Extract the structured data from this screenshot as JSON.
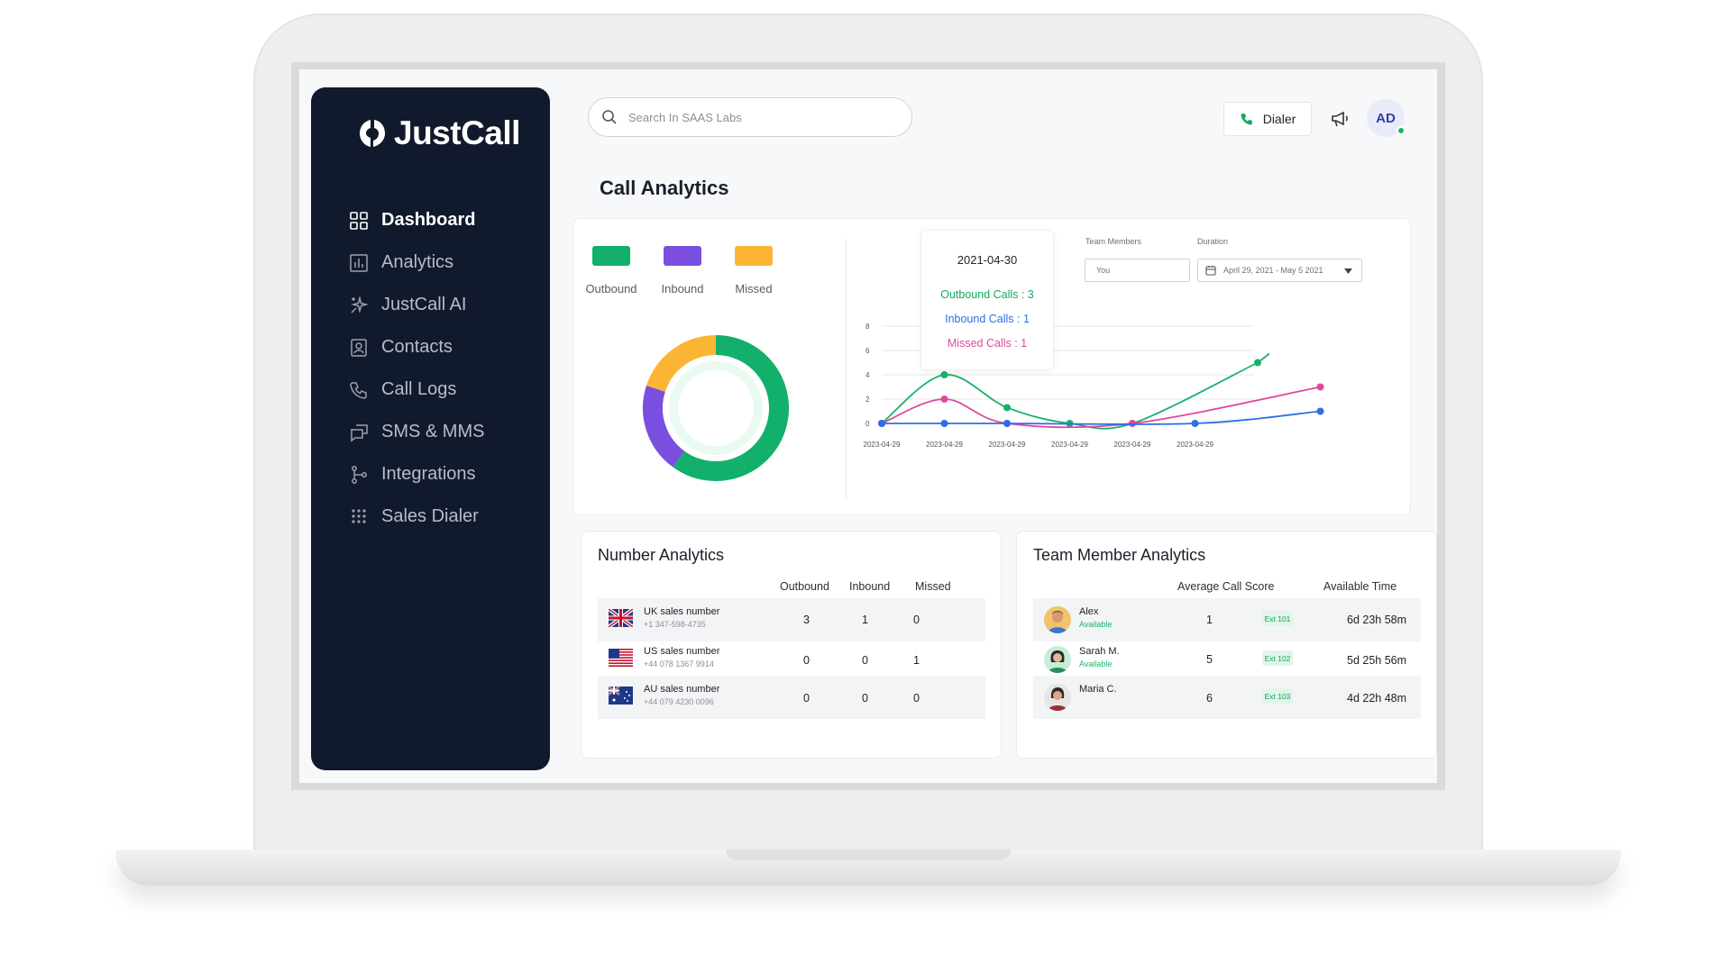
{
  "brand": {
    "name": "JustCall"
  },
  "sidebar": {
    "items": [
      {
        "label": "Dashboard",
        "active": true
      },
      {
        "label": "Analytics"
      },
      {
        "label": "JustCall AI"
      },
      {
        "label": "Contacts"
      },
      {
        "label": "Call Logs"
      },
      {
        "label": "SMS & MMS"
      },
      {
        "label": "Integrations"
      },
      {
        "label": "Sales Dialer"
      }
    ]
  },
  "topbar": {
    "search_placeholder": "Search In SAAS Labs",
    "dialer_label": "Dialer",
    "avatar_initials": "AD",
    "status_color": "#1bb46a"
  },
  "page": {
    "title": "Call Analytics"
  },
  "call_analytics": {
    "legend": [
      {
        "label": "Outbound",
        "color": "#12b06b"
      },
      {
        "label": "Inbound",
        "color": "#7a4fe0"
      },
      {
        "label": "Missed",
        "color": "#fbb534"
      }
    ],
    "tooltip": {
      "date": "2021-04-30",
      "outbound": "Outbound Calls : 3",
      "inbound": "Inbound Calls : 1",
      "missed": "Missed Calls : 1"
    },
    "filters": {
      "team_members_label": "Team Members",
      "team_members_value": "You",
      "duration_label": "Duration",
      "duration_value": "April 29, 2021 - May 5 2021"
    }
  },
  "chart_data": [
    {
      "type": "pie",
      "categories": [
        "Outbound",
        "Inbound",
        "Missed"
      ],
      "values": [
        3,
        1,
        1
      ],
      "colors": [
        "#12b06b",
        "#7a4fe0",
        "#fbb534"
      ]
    },
    {
      "type": "line",
      "x": [
        "2023-04-29",
        "2023-04-29",
        "2023-04-29",
        "2023-04-29",
        "2023-04-29",
        "2023-04-29",
        "",
        ""
      ],
      "series": [
        {
          "name": "Outbound",
          "color": "#17b26a",
          "values": [
            0,
            4,
            1.3,
            0,
            0,
            null,
            5,
            null
          ]
        },
        {
          "name": "Missed",
          "color": "#e0489c",
          "values": [
            0,
            2,
            0,
            null,
            0,
            null,
            null,
            3
          ]
        },
        {
          "name": "Inbound",
          "color": "#2e6fe6",
          "values": [
            0,
            0,
            0,
            null,
            null,
            0,
            null,
            1
          ]
        }
      ],
      "ylim": [
        0,
        8
      ],
      "yticks": [
        0,
        2,
        4,
        6,
        8
      ],
      "grid": true
    }
  ],
  "number_analytics": {
    "title": "Number Analytics",
    "columns": [
      "Outbound",
      "Inbound",
      "Missed"
    ],
    "rows": [
      {
        "name": "UK sales number",
        "number": "+1 347-598-4735",
        "flag": "uk-flag",
        "outbound": "3",
        "inbound": "1",
        "missed": "0"
      },
      {
        "name": "US sales number",
        "number": "+44 078 1367 9914",
        "flag": "us-flag",
        "outbound": "0",
        "inbound": "0",
        "missed": "1"
      },
      {
        "name": "AU sales number",
        "number": "+44 079 4230 0096",
        "flag": "au-flag",
        "outbound": "0",
        "inbound": "0",
        "missed": "0"
      }
    ]
  },
  "team_analytics": {
    "title": "Team Member Analytics",
    "columns": [
      "Average Call Score",
      "Available Time"
    ],
    "rows": [
      {
        "name": "Alex",
        "status": "Available",
        "score": "1",
        "ext": "Ext 101",
        "time": "6d 23h 58m"
      },
      {
        "name": "Sarah M.",
        "status": "Available",
        "score": "5",
        "ext": "Ext 102",
        "time": "5d 25h 56m"
      },
      {
        "name": "Maria C.",
        "status": "",
        "score": "6",
        "ext": "Ext 103",
        "time": "4d 22h 48m"
      }
    ]
  }
}
